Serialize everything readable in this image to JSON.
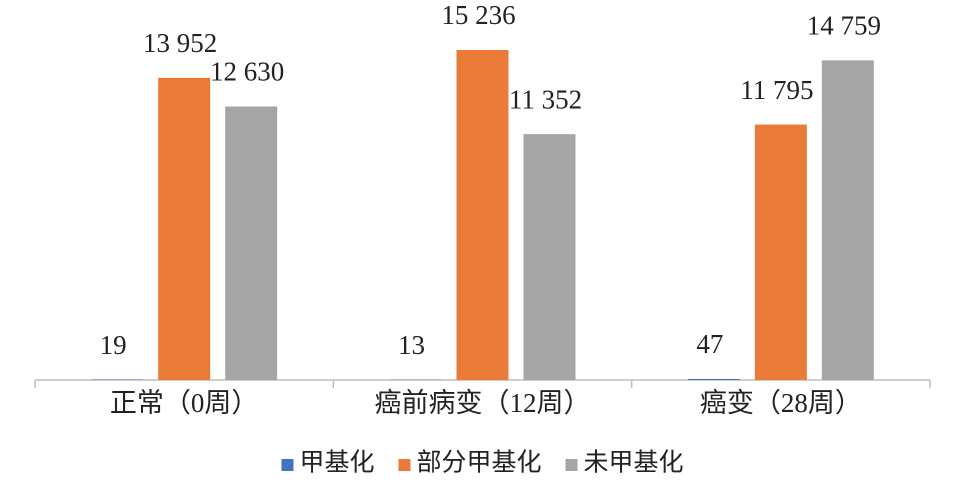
{
  "chart_data": {
    "type": "bar",
    "categories": [
      "正常（0周）",
      "癌前病变（12周）",
      "癌变（28周）"
    ],
    "series": [
      {
        "name": "甲基化",
        "color": "#4472c4",
        "values": [
          19,
          13,
          47
        ],
        "value_labels": [
          "19",
          "13",
          "47"
        ]
      },
      {
        "name": "部分甲基化",
        "color": "#e97a37",
        "values": [
          13952,
          15236,
          11795
        ],
        "value_labels": [
          "13 952",
          "15 236",
          "11 795"
        ]
      },
      {
        "name": "未甲基化",
        "color": "#a5a5a5",
        "values": [
          12630,
          11352,
          14759
        ],
        "value_labels": [
          "12 630",
          "11 352",
          "14 759"
        ]
      }
    ],
    "ylim": [
      0,
      17500
    ],
    "legend": "bottom"
  }
}
